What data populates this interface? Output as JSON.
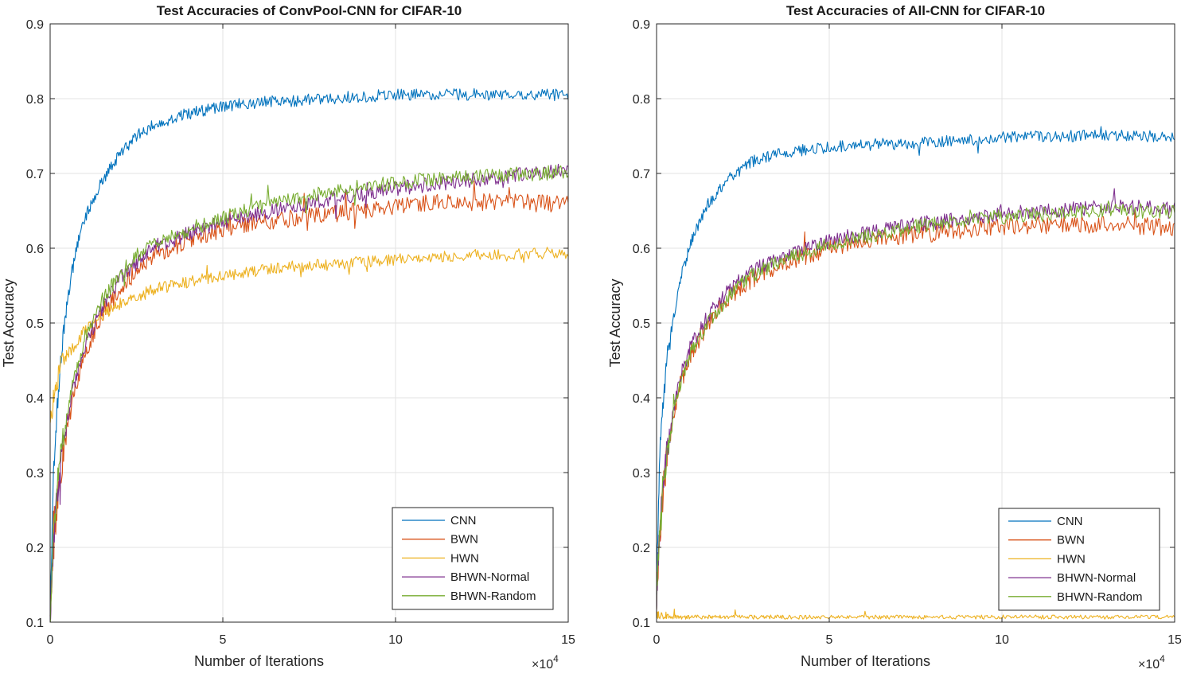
{
  "chart_data": [
    {
      "type": "line",
      "title": "Test Accuracies of ConvPool-CNN for CIFAR-10",
      "xlabel": "Number of Iterations",
      "ylabel": "Test Accuracy",
      "x_exponent_base": "×10",
      "x_exponent_power": "4",
      "xlim": [
        0,
        15
      ],
      "ylim": [
        0.1,
        0.9
      ],
      "xticks": [
        "0",
        "5",
        "10",
        "15"
      ],
      "yticks": [
        "0.1",
        "0.2",
        "0.3",
        "0.4",
        "0.5",
        "0.6",
        "0.7",
        "0.8",
        "0.9"
      ],
      "grid": true,
      "legend_position": "bottom-right",
      "series": [
        {
          "name": "CNN",
          "color": "#0072BD",
          "noise": 0.008,
          "x": [
            0,
            0.05,
            0.1,
            0.2,
            0.3,
            0.5,
            0.7,
            1,
            1.5,
            2,
            2.5,
            3,
            4,
            5,
            6,
            7,
            8,
            9,
            10,
            11,
            12,
            13,
            14,
            15
          ],
          "values": [
            0.12,
            0.2,
            0.3,
            0.38,
            0.45,
            0.53,
            0.59,
            0.64,
            0.69,
            0.725,
            0.75,
            0.765,
            0.78,
            0.79,
            0.795,
            0.797,
            0.8,
            0.803,
            0.805,
            0.806,
            0.806,
            0.805,
            0.805,
            0.805
          ]
        },
        {
          "name": "BWN",
          "color": "#D95319",
          "noise": 0.012,
          "x": [
            0,
            0.05,
            0.1,
            0.2,
            0.3,
            0.5,
            0.7,
            1,
            1.5,
            2,
            2.5,
            3,
            4,
            5,
            6,
            7,
            8,
            9,
            10,
            11,
            12,
            13,
            14,
            15
          ],
          "values": [
            0.1,
            0.15,
            0.2,
            0.26,
            0.3,
            0.36,
            0.41,
            0.46,
            0.51,
            0.545,
            0.57,
            0.59,
            0.61,
            0.625,
            0.635,
            0.64,
            0.645,
            0.65,
            0.655,
            0.66,
            0.662,
            0.662,
            0.66,
            0.658
          ]
        },
        {
          "name": "HWN",
          "color": "#EDB120",
          "noise": 0.008,
          "x": [
            0,
            0.05,
            0.1,
            0.2,
            0.3,
            0.5,
            0.7,
            1,
            1.5,
            2,
            2.5,
            3,
            4,
            5,
            6,
            7,
            8,
            9,
            10,
            11,
            12,
            13,
            14,
            15
          ],
          "values": [
            0.36,
            0.38,
            0.4,
            0.42,
            0.44,
            0.46,
            0.47,
            0.49,
            0.51,
            0.525,
            0.535,
            0.545,
            0.555,
            0.563,
            0.57,
            0.575,
            0.578,
            0.582,
            0.585,
            0.588,
            0.59,
            0.592,
            0.593,
            0.594
          ]
        },
        {
          "name": "BHWN-Normal",
          "color": "#7E2F8E",
          "noise": 0.01,
          "x": [
            0,
            0.05,
            0.1,
            0.2,
            0.3,
            0.5,
            0.7,
            1,
            1.5,
            2,
            2.5,
            3,
            4,
            5,
            6,
            7,
            8,
            9,
            10,
            11,
            12,
            13,
            14,
            15
          ],
          "values": [
            0.1,
            0.16,
            0.21,
            0.27,
            0.31,
            0.37,
            0.42,
            0.47,
            0.52,
            0.56,
            0.58,
            0.6,
            0.62,
            0.635,
            0.645,
            0.655,
            0.665,
            0.672,
            0.68,
            0.685,
            0.69,
            0.695,
            0.7,
            0.705
          ]
        },
        {
          "name": "BHWN-Random",
          "color": "#77AC30",
          "noise": 0.01,
          "x": [
            0,
            0.05,
            0.1,
            0.2,
            0.3,
            0.5,
            0.7,
            1,
            1.5,
            2,
            2.5,
            3,
            4,
            5,
            6,
            7,
            8,
            9,
            10,
            11,
            12,
            13,
            14,
            15
          ],
          "values": [
            0.1,
            0.17,
            0.22,
            0.28,
            0.32,
            0.38,
            0.43,
            0.48,
            0.53,
            0.565,
            0.59,
            0.605,
            0.625,
            0.64,
            0.655,
            0.665,
            0.675,
            0.682,
            0.688,
            0.692,
            0.695,
            0.698,
            0.7,
            0.702
          ]
        }
      ]
    },
    {
      "type": "line",
      "title": "Test Accuracies of All-CNN for CIFAR-10",
      "xlabel": "Number of Iterations",
      "ylabel": "Test Accuracy",
      "x_exponent_base": "×10",
      "x_exponent_power": "4",
      "xlim": [
        0,
        15
      ],
      "ylim": [
        0.1,
        0.9
      ],
      "xticks": [
        "0",
        "5",
        "10",
        "15"
      ],
      "yticks": [
        "0.1",
        "0.2",
        "0.3",
        "0.4",
        "0.5",
        "0.6",
        "0.7",
        "0.8",
        "0.9"
      ],
      "grid": true,
      "legend_position": "bottom-right",
      "series": [
        {
          "name": "CNN",
          "color": "#0072BD",
          "noise": 0.008,
          "x": [
            0,
            0.05,
            0.1,
            0.2,
            0.3,
            0.5,
            0.7,
            1,
            1.5,
            2,
            2.5,
            3,
            4,
            5,
            6,
            7,
            8,
            9,
            10,
            11,
            12,
            13,
            14,
            15
          ],
          "values": [
            0.15,
            0.25,
            0.33,
            0.4,
            0.45,
            0.51,
            0.56,
            0.61,
            0.66,
            0.69,
            0.71,
            0.72,
            0.73,
            0.735,
            0.738,
            0.74,
            0.742,
            0.745,
            0.748,
            0.75,
            0.75,
            0.75,
            0.75,
            0.75
          ]
        },
        {
          "name": "BWN",
          "color": "#D95319",
          "noise": 0.012,
          "x": [
            0,
            0.05,
            0.1,
            0.2,
            0.3,
            0.5,
            0.7,
            1,
            1.5,
            2,
            2.5,
            3,
            4,
            5,
            6,
            7,
            8,
            9,
            10,
            11,
            12,
            13,
            14,
            15
          ],
          "values": [
            0.13,
            0.18,
            0.22,
            0.28,
            0.32,
            0.38,
            0.42,
            0.46,
            0.5,
            0.53,
            0.55,
            0.565,
            0.585,
            0.6,
            0.61,
            0.615,
            0.62,
            0.625,
            0.63,
            0.63,
            0.632,
            0.632,
            0.63,
            0.628
          ]
        },
        {
          "name": "HWN",
          "color": "#EDB120",
          "noise": 0.004,
          "x": [
            0,
            1,
            2,
            3,
            4,
            5,
            6,
            7,
            8,
            9,
            10,
            11,
            12,
            13,
            14,
            15
          ],
          "values": [
            0.104,
            0.104,
            0.104,
            0.104,
            0.104,
            0.104,
            0.104,
            0.104,
            0.104,
            0.104,
            0.104,
            0.104,
            0.104,
            0.104,
            0.104,
            0.104
          ]
        },
        {
          "name": "BHWN-Normal",
          "color": "#7E2F8E",
          "noise": 0.01,
          "x": [
            0,
            0.05,
            0.1,
            0.2,
            0.3,
            0.5,
            0.7,
            1,
            1.5,
            2,
            2.5,
            3,
            4,
            5,
            6,
            7,
            8,
            9,
            10,
            11,
            12,
            13,
            14,
            15
          ],
          "values": [
            0.13,
            0.18,
            0.23,
            0.29,
            0.33,
            0.39,
            0.43,
            0.47,
            0.51,
            0.54,
            0.56,
            0.575,
            0.595,
            0.61,
            0.62,
            0.628,
            0.635,
            0.64,
            0.645,
            0.65,
            0.652,
            0.655,
            0.655,
            0.655
          ]
        },
        {
          "name": "BHWN-Random",
          "color": "#77AC30",
          "noise": 0.01,
          "x": [
            0,
            0.05,
            0.1,
            0.2,
            0.3,
            0.5,
            0.7,
            1,
            1.5,
            2,
            2.5,
            3,
            4,
            5,
            6,
            7,
            8,
            9,
            10,
            11,
            12,
            13,
            14,
            15
          ],
          "values": [
            0.13,
            0.18,
            0.22,
            0.28,
            0.32,
            0.38,
            0.42,
            0.46,
            0.5,
            0.53,
            0.555,
            0.57,
            0.59,
            0.605,
            0.615,
            0.625,
            0.632,
            0.638,
            0.642,
            0.645,
            0.648,
            0.65,
            0.65,
            0.65
          ]
        }
      ]
    }
  ]
}
